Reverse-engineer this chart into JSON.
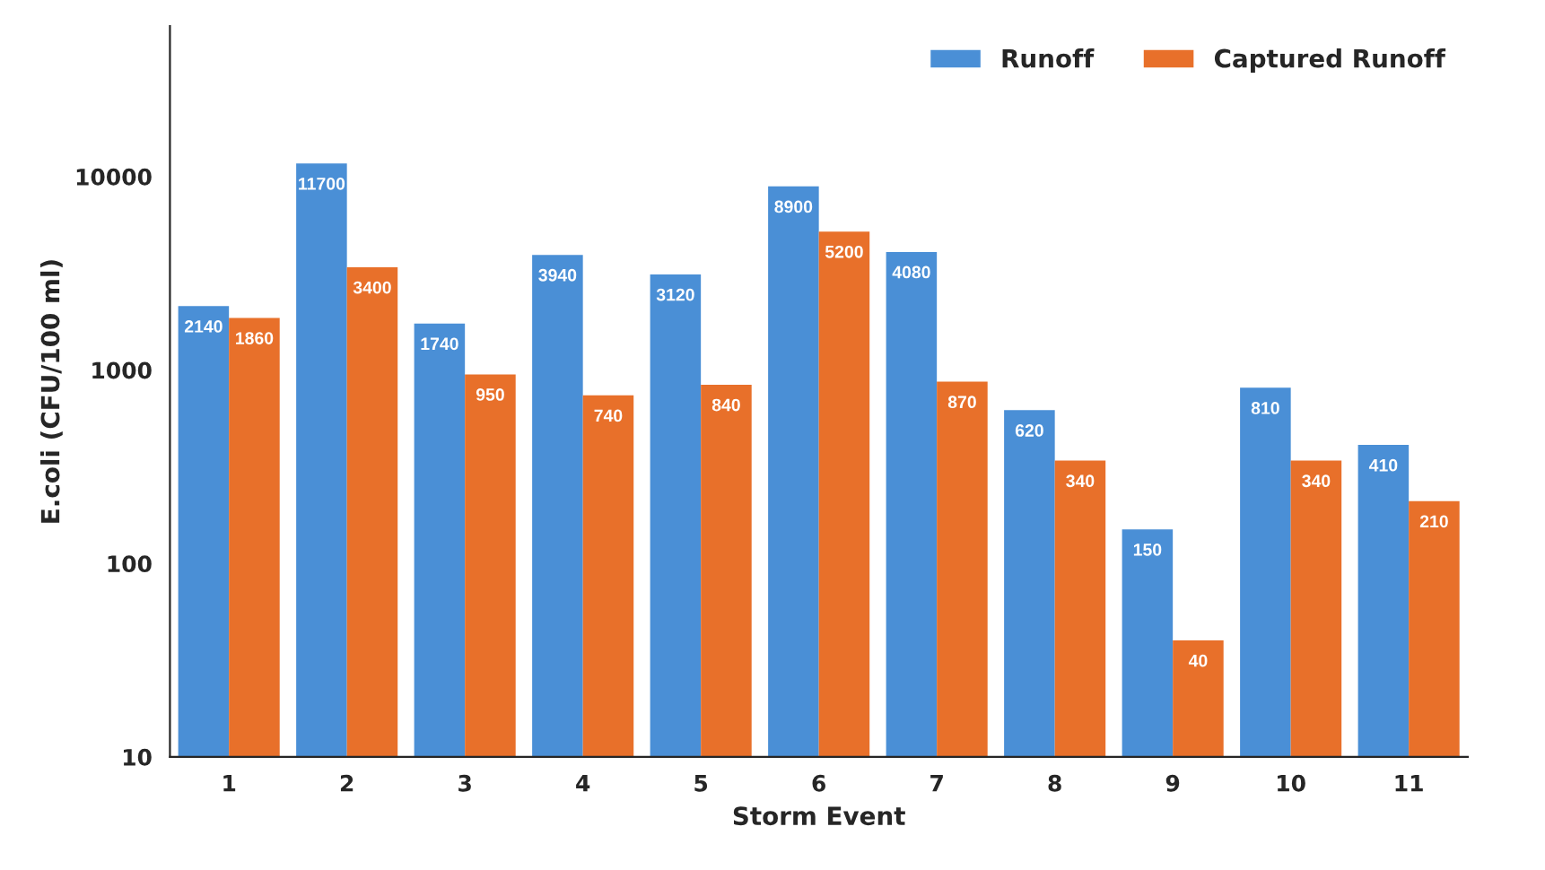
{
  "chart_data": {
    "type": "bar",
    "xlabel": "Storm Event",
    "ylabel": "E.coli (CFU/100 ml)",
    "categories": [
      "1",
      "2",
      "3",
      "4",
      "5",
      "6",
      "7",
      "8",
      "9",
      "10",
      "11"
    ],
    "series": [
      {
        "name": "Runoff",
        "color": "#4a8fd6",
        "values": [
          2140,
          11700,
          1740,
          3940,
          3120,
          8900,
          4080,
          620,
          150,
          810,
          410
        ]
      },
      {
        "name": "Captured Runoff",
        "color": "#e8702a",
        "values": [
          1860,
          3400,
          950,
          740,
          840,
          5200,
          870,
          340,
          40,
          340,
          210
        ]
      }
    ],
    "log": true,
    "ylim": [
      10,
      60000
    ],
    "yticks": [
      10,
      100,
      1000,
      10000
    ],
    "data_labels": true,
    "legend": "top right",
    "grid": false
  }
}
